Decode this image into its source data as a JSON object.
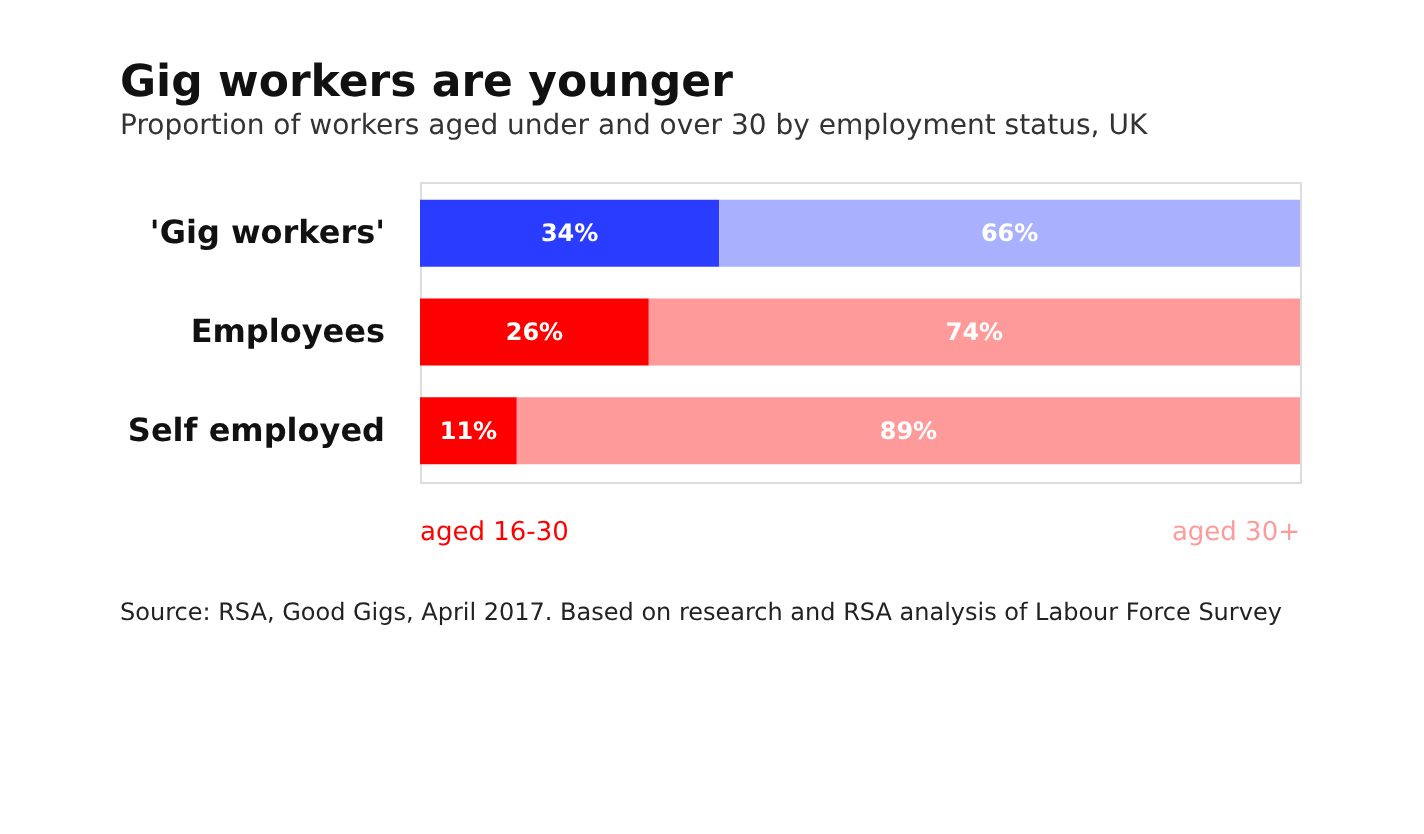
{
  "chart_data": {
    "type": "bar",
    "orientation": "horizontal",
    "stacked": true,
    "title": "Gig workers are younger",
    "subtitle": "Proportion of workers aged under and over 30 by employment status, UK",
    "categories": [
      "'Gig workers'",
      "Employees",
      "Self employed"
    ],
    "series": [
      {
        "name": "aged 16-30",
        "color": "#ff0000",
        "colors": [
          "#2a3cff",
          "#ff0000",
          "#ff0000"
        ],
        "values": [
          34,
          26,
          11
        ],
        "value_labels": [
          "34%",
          "26%",
          "11%"
        ]
      },
      {
        "name": "aged 30+",
        "color": "#ff9a9a",
        "colors": [
          "#a9b1ff",
          "#ff9a9a",
          "#ff9a9a"
        ],
        "values": [
          66,
          74,
          89
        ],
        "value_labels": [
          "66%",
          "74%",
          "89%"
        ]
      }
    ],
    "legend": "bottom",
    "tick_labels": "y",
    "annotations": [
      "Source: RSA, Good Gigs, April 2017. Based on research and RSA analysis of Labour Force Survey"
    ]
  }
}
